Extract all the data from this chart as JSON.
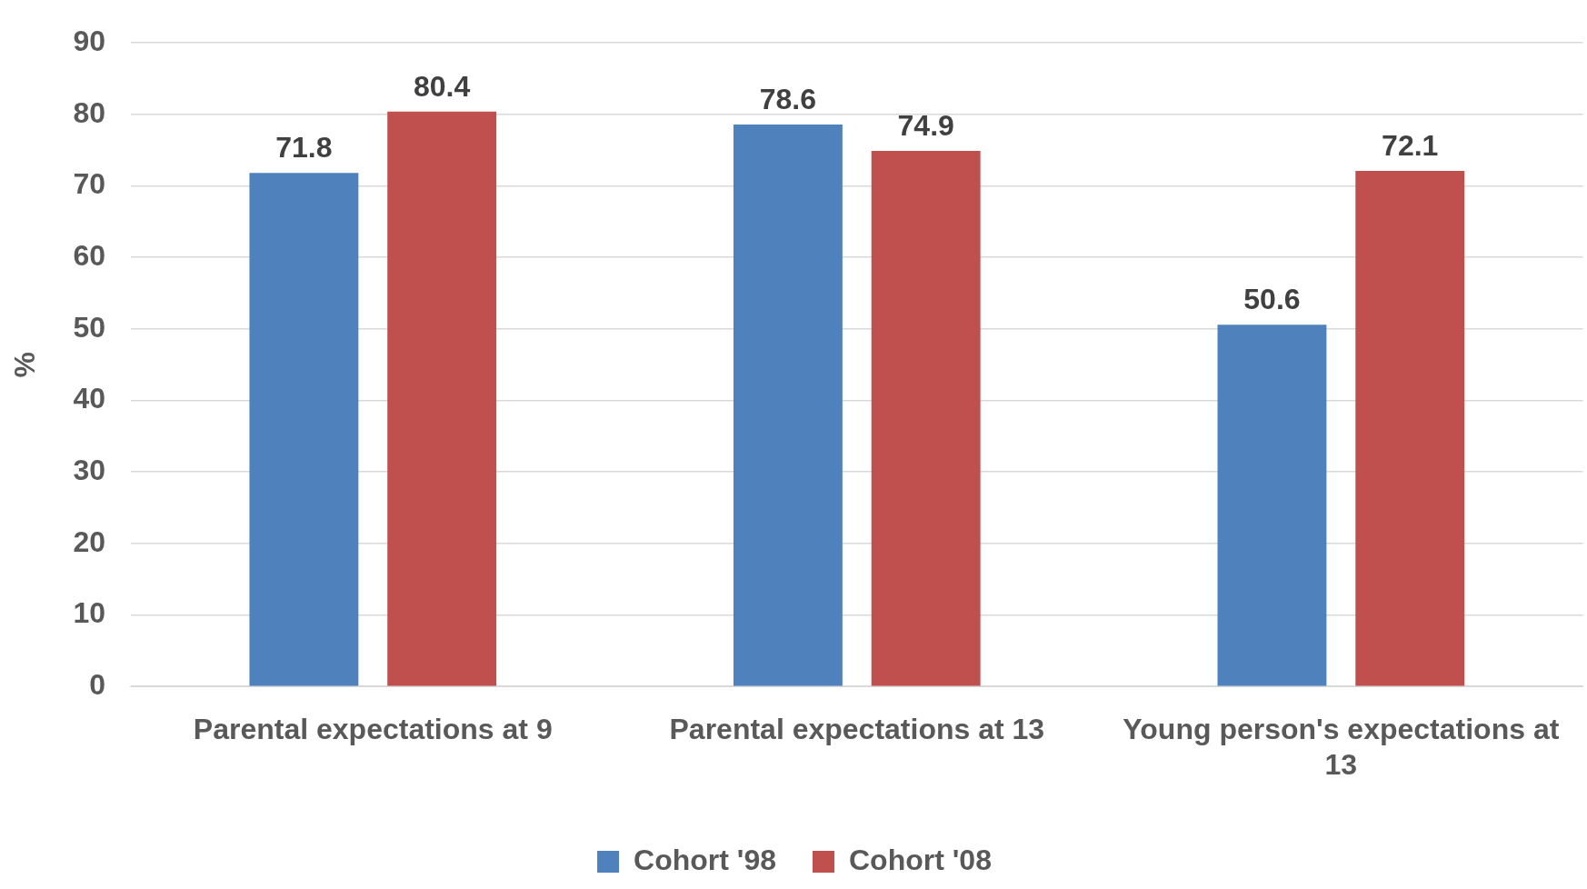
{
  "chart_data": {
    "type": "bar",
    "ylabel": "%",
    "categories": [
      "Parental expectations at 9",
      "Parental expectations at 13",
      "Young person's expectations at 13"
    ],
    "series": [
      {
        "name": "Cohort '98",
        "color": "#4f81bd",
        "values": [
          71.8,
          78.6,
          50.6
        ]
      },
      {
        "name": "Cohort '08",
        "color": "#c0504d",
        "values": [
          80.4,
          74.9,
          72.1
        ]
      }
    ],
    "ylim": [
      0,
      90
    ],
    "yticks": [
      0,
      10,
      20,
      30,
      40,
      50,
      60,
      70,
      80,
      90
    ],
    "grid": "y",
    "legend": "bottom",
    "data_labels": true
  }
}
